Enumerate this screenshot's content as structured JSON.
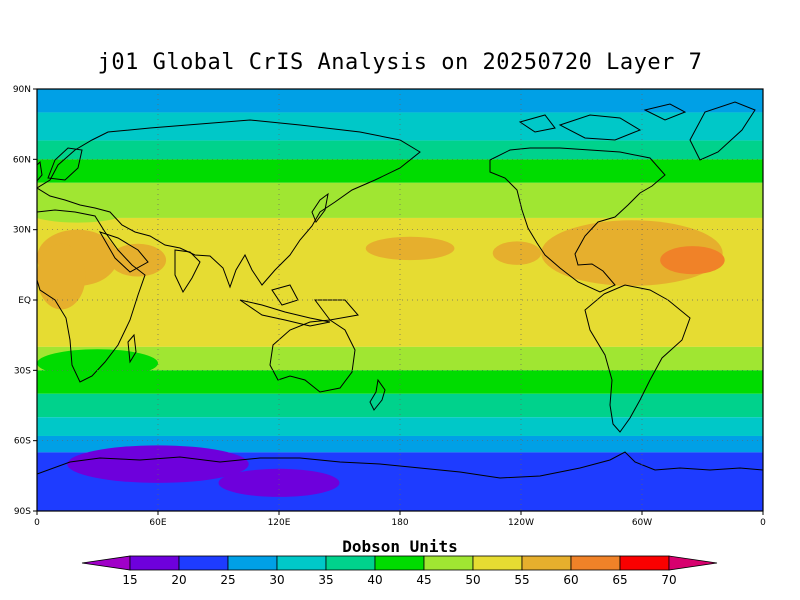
{
  "title": "j01 Global CrIS Analysis on 20250720 Layer 7",
  "lat_labels": [
    "90N",
    "60N",
    "30N",
    "EQ",
    "30S",
    "60S",
    "90S"
  ],
  "lon_labels": [
    "0",
    "60E",
    "120E",
    "180",
    "120W",
    "60W",
    "0"
  ],
  "colorbar": {
    "title": "Dobson Units",
    "levels": [
      "15",
      "20",
      "25",
      "30",
      "35",
      "40",
      "45",
      "50",
      "55",
      "60",
      "65",
      "70"
    ],
    "colors": [
      "#a000c8",
      "#6e00dc",
      "#1e3cff",
      "#00a0e6",
      "#00c8c8",
      "#00d28c",
      "#00dc00",
      "#a0e632",
      "#e6dc32",
      "#e6af2d",
      "#f08228",
      "#fa0000",
      "#d7006e"
    ]
  },
  "map": {
    "lon_range": [
      0,
      360
    ],
    "lat_range": [
      -90,
      90
    ],
    "grid": "dotted",
    "bands": [
      {
        "lat_from": 90,
        "lat_to": 80,
        "value_range": "25-30"
      },
      {
        "lat_from": 80,
        "lat_to": 68,
        "value_range": "30-35"
      },
      {
        "lat_from": 68,
        "lat_to": 60,
        "value_range": "35-40"
      },
      {
        "lat_from": 60,
        "lat_to": 50,
        "value_range": "40-45"
      },
      {
        "lat_from": 50,
        "lat_to": 35,
        "value_range": "45-50"
      },
      {
        "lat_from": 35,
        "lat_to": -20,
        "value_range": "50-55"
      },
      {
        "lat_from": -20,
        "lat_to": -30,
        "value_range": "45-50"
      },
      {
        "lat_from": -30,
        "lat_to": -40,
        "value_range": "40-45"
      },
      {
        "lat_from": -40,
        "lat_to": -50,
        "value_range": "35-40"
      },
      {
        "lat_from": -50,
        "lat_to": -58,
        "value_range": "30-35"
      },
      {
        "lat_from": -58,
        "lat_to": -65,
        "value_range": "25-30"
      },
      {
        "lat_from": -65,
        "lat_to": -90,
        "value_range": "20-25"
      }
    ],
    "max_region": {
      "lon": 333,
      "lat": 17,
      "value_range": "65-70"
    }
  }
}
